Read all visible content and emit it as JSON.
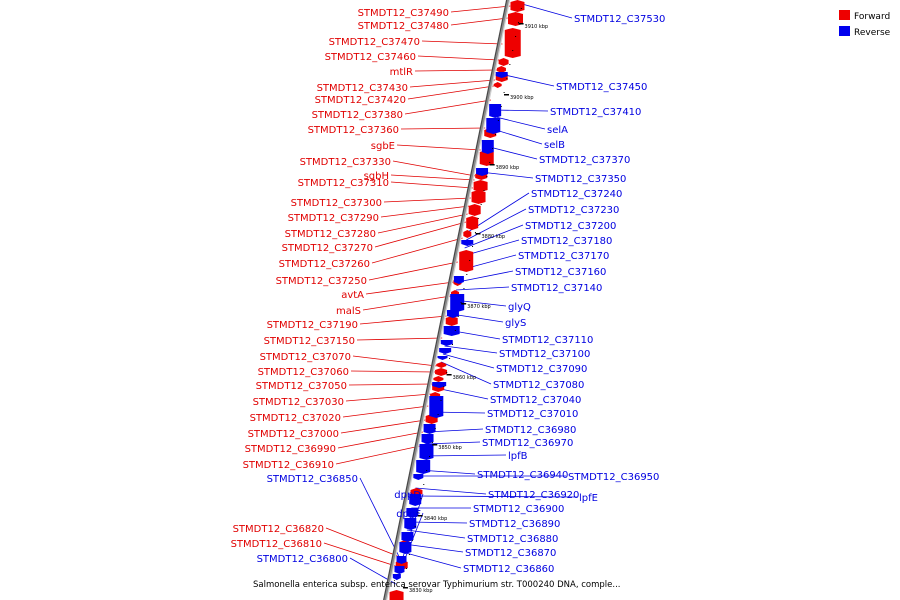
{
  "title": "Salmonella enterica subsp. enterica serovar Typhimurium str. T000240 DNA, comple...",
  "legend": {
    "forward": {
      "label": "Forward",
      "color": "#ee0000"
    },
    "reverse": {
      "label": "Reverse",
      "color": "#0000ee"
    }
  },
  "scale": {
    "unit": "kbp",
    "ticks": [
      "3910 kbp",
      "3900 kbp",
      "3890 kbp",
      "3880 kbp",
      "3870 kbp",
      "3860 kbp",
      "3850 kbp",
      "3840 kbp",
      "3830 kbp"
    ]
  },
  "forward_genes": [
    "STMDT12_C37490",
    "STMDT12_C37480",
    "STMDT12_C37470",
    "STMDT12_C37460",
    "mtlR",
    "STMDT12_C37430",
    "STMDT12_C37420",
    "STMDT12_C37380",
    "STMDT12_C37360",
    "sgbE",
    "STMDT12_C37330",
    "sgbH",
    "STMDT12_C37310",
    "STMDT12_C37300",
    "STMDT12_C37290",
    "STMDT12_C37280",
    "STMDT12_C37270",
    "STMDT12_C37260",
    "STMDT12_C37250",
    "avtA",
    "malS",
    "STMDT12_C37190",
    "STMDT12_C37150",
    "STMDT12_C37070",
    "STMDT12_C37060",
    "STMDT12_C37050",
    "STMDT12_C37030",
    "STMDT12_C37020",
    "STMDT12_C37000",
    "STMDT12_C36990",
    "STMDT12_C36910",
    "STMDT12_C36820",
    "STMDT12_C36810"
  ],
  "reverse_genes": [
    "STMDT12_C37530",
    "STMDT12_C37450",
    "STMDT12_C37410",
    "selA",
    "selB",
    "STMDT12_C37370",
    "STMDT12_C37350",
    "STMDT12_C37240",
    "STMDT12_C37230",
    "STMDT12_C37200",
    "STMDT12_C37180",
    "STMDT12_C37170",
    "STMDT12_C37160",
    "STMDT12_C37140",
    "glyQ",
    "glyS",
    "STMDT12_C37110",
    "STMDT12_C37100",
    "STMDT12_C37090",
    "STMDT12_C37080",
    "STMDT12_C37040",
    "STMDT12_C37010",
    "STMDT12_C36980",
    "STMDT12_C36970",
    "lpfB",
    "STMDT12_C36940",
    "STMDT12_C36950",
    "STMDT12_C36920",
    "lpfE",
    "STMDT12_C36900",
    "STMDT12_C36890",
    "STMDT12_C36880",
    "STMDT12_C36870",
    "STMDT12_C36860",
    "STMDT12_C36850",
    "dppD",
    "dppF",
    "STMDT12_C36800"
  ]
}
